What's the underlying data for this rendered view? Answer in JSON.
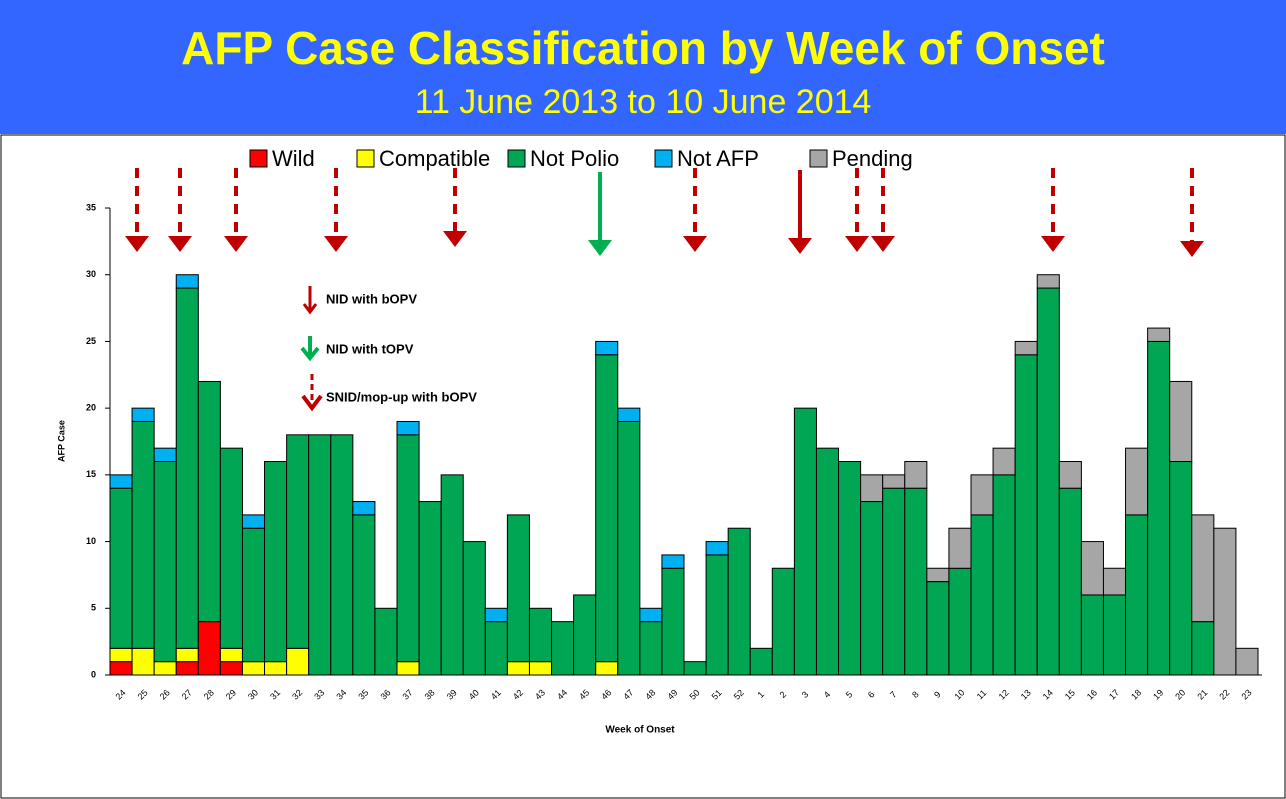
{
  "chart_data": {
    "type": "stacked-bar",
    "title": "AFP Case Classification by Week of Onset",
    "subtitle": "11 June 2013 to 10 June 2014",
    "x_label": "Week of Onset",
    "y_label": "AFP Case",
    "categories": [
      "24",
      "25",
      "26",
      "27",
      "28",
      "29",
      "30",
      "31",
      "32",
      "33",
      "34",
      "35",
      "36",
      "37",
      "38",
      "39",
      "40",
      "41",
      "42",
      "43",
      "44",
      "45",
      "46",
      "47",
      "48",
      "49",
      "50",
      "51",
      "52",
      "1",
      "2",
      "3",
      "4",
      "5",
      "6",
      "7",
      "8",
      "9",
      "10",
      "11",
      "12",
      "13",
      "14",
      "15",
      "16",
      "17",
      "18",
      "19",
      "20",
      "21",
      "22",
      "23"
    ],
    "series": [
      {
        "name": "Wild",
        "color": "#ff0000",
        "values": [
          1,
          0,
          0,
          1,
          4,
          1,
          0,
          0,
          0,
          0,
          0,
          0,
          0,
          0,
          0,
          0,
          0,
          0,
          0,
          0,
          0,
          0,
          0,
          0,
          0,
          0,
          0,
          0,
          0,
          0,
          0,
          0,
          0,
          0,
          0,
          0,
          0,
          0,
          0,
          0,
          0,
          0,
          0,
          0,
          0,
          0,
          0,
          0,
          0,
          0,
          0,
          0
        ]
      },
      {
        "name": "Compatible",
        "color": "#ffff00",
        "values": [
          1,
          2,
          1,
          1,
          0,
          1,
          1,
          1,
          2,
          0,
          0,
          0,
          0,
          1,
          0,
          0,
          0,
          0,
          1,
          1,
          0,
          0,
          1,
          0,
          0,
          0,
          0,
          0,
          0,
          0,
          0,
          0,
          0,
          0,
          0,
          0,
          0,
          0,
          0,
          0,
          0,
          0,
          0,
          0,
          0,
          0,
          0,
          0,
          0,
          0,
          0,
          0
        ]
      },
      {
        "name": "Not Polio",
        "color": "#00a651",
        "values": [
          12,
          17,
          15,
          27,
          18,
          15,
          10,
          15,
          16,
          18,
          18,
          12,
          5,
          17,
          13,
          15,
          10,
          4,
          11,
          4,
          4,
          6,
          23,
          19,
          4,
          8,
          1,
          9,
          11,
          2,
          8,
          20,
          17,
          16,
          13,
          14,
          14,
          7,
          8,
          12,
          15,
          24,
          29,
          14,
          6,
          6,
          12,
          25,
          16,
          4,
          0,
          0
        ]
      },
      {
        "name": "Not AFP",
        "color": "#00b0f0",
        "values": [
          1,
          1,
          1,
          1,
          0,
          0,
          1,
          0,
          0,
          0,
          0,
          1,
          0,
          1,
          0,
          0,
          0,
          1,
          0,
          0,
          0,
          0,
          1,
          1,
          1,
          1,
          0,
          1,
          0,
          0,
          0,
          0,
          0,
          0,
          0,
          0,
          0,
          0,
          0,
          0,
          0,
          0,
          0,
          0,
          0,
          0,
          0,
          0,
          0,
          0,
          0,
          0
        ]
      },
      {
        "name": "Pending",
        "color": "#a6a6a6",
        "values": [
          0,
          0,
          0,
          0,
          0,
          0,
          0,
          0,
          0,
          0,
          0,
          0,
          0,
          0,
          0,
          0,
          0,
          0,
          0,
          0,
          0,
          0,
          0,
          0,
          0,
          0,
          0,
          0,
          0,
          0,
          0,
          0,
          0,
          0,
          2,
          1,
          2,
          1,
          3,
          3,
          2,
          1,
          1,
          2,
          4,
          2,
          5,
          1,
          6,
          8,
          11,
          2
        ]
      }
    ],
    "ylim": [
      0,
      35
    ],
    "yticks": [
      0,
      5,
      10,
      15,
      20,
      25,
      30,
      35
    ],
    "legend": "top",
    "annotations": [
      "NID with bOPV",
      "NID with tOPV",
      "SNID/mop-up with bOPV"
    ]
  }
}
